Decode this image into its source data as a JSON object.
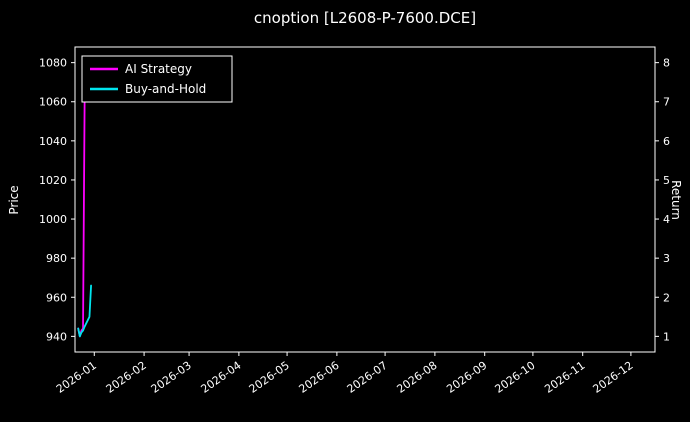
{
  "figure": {
    "background": "#000000",
    "foreground": "#ffffff"
  },
  "chart_data": {
    "type": "line",
    "title": "cnoption [L2608-P-7600.DCE]",
    "ylabel": "Price",
    "ylabel_right": "Return",
    "grid": false,
    "legend_position": "upper left",
    "x_range": [
      "2025-12-20",
      "2026-12-16"
    ],
    "x_tick_labels": [
      "2026-01",
      "2026-02",
      "2026-03",
      "2026-04",
      "2026-05",
      "2026-06",
      "2026-07",
      "2026-08",
      "2026-09",
      "2026-10",
      "2026-11",
      "2026-12"
    ],
    "ylim": [
      932,
      1088
    ],
    "y_ticks": [
      940,
      960,
      980,
      1000,
      1020,
      1040,
      1060,
      1080
    ],
    "ylim_right": [
      0.6,
      8.4
    ],
    "y_ticks_right": [
      1,
      2,
      3,
      4,
      5,
      6,
      7,
      8
    ],
    "series": [
      {
        "name": "AI Strategy",
        "color": "#ff00ff",
        "axis": "left",
        "points": [
          [
            "2025-12-22",
            944
          ],
          [
            "2025-12-23",
            940
          ],
          [
            "2025-12-24",
            943
          ],
          [
            "2025-12-25",
            944
          ],
          [
            "2025-12-26",
            1062
          ]
        ]
      },
      {
        "name": "Buy-and-Hold",
        "color": "#00e5ee",
        "axis": "left",
        "points": [
          [
            "2025-12-22",
            944
          ],
          [
            "2025-12-23",
            940
          ],
          [
            "2025-12-24",
            942
          ],
          [
            "2025-12-25",
            943
          ],
          [
            "2025-12-26",
            945
          ],
          [
            "2025-12-29",
            950
          ],
          [
            "2025-12-30",
            966
          ]
        ]
      }
    ]
  }
}
